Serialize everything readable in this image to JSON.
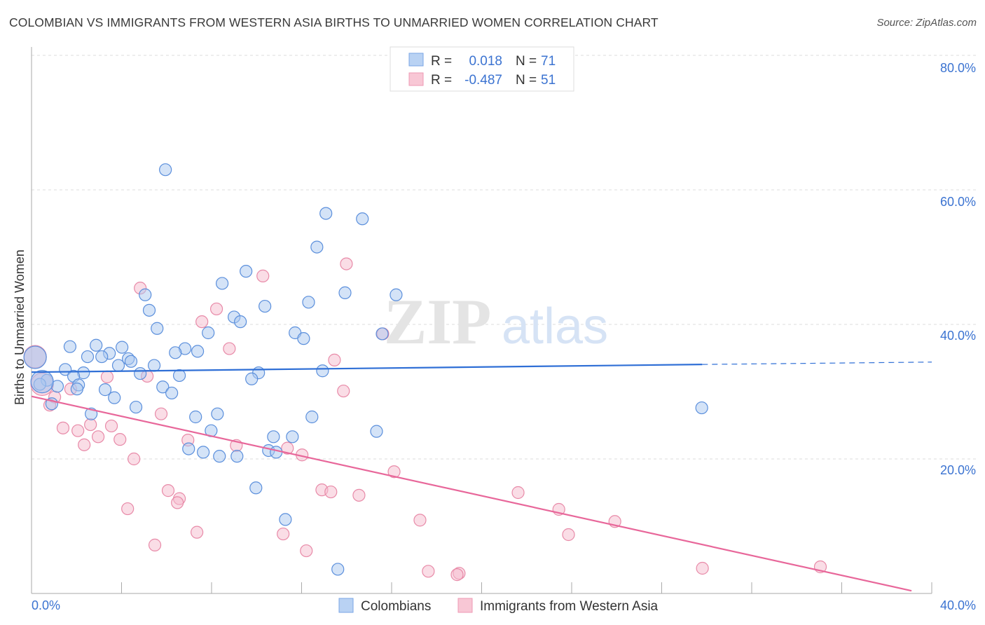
{
  "title": "COLOMBIAN VS IMMIGRANTS FROM WESTERN ASIA BIRTHS TO UNMARRIED WOMEN CORRELATION CHART",
  "source": "Source: ZipAtlas.com",
  "watermark": "ZIPatlas",
  "colors": {
    "blue_fill": "#a9c7f0",
    "blue_stroke": "#5b8fdc",
    "blue_line": "#2f6fd6",
    "pink_fill": "#f6bccd",
    "pink_stroke": "#e88aa8",
    "pink_line": "#e8679a",
    "accent_text": "#3b73d1"
  },
  "legend": {
    "rows": [
      {
        "r_label": "R =",
        "r_value": "0.018",
        "n_label": "N =",
        "n_value": "71"
      },
      {
        "r_label": "R =",
        "r_value": "-0.487",
        "n_label": "N =",
        "n_value": "51"
      }
    ]
  },
  "chart_data": {
    "type": "scatter",
    "title": "COLOMBIAN VS IMMIGRANTS FROM WESTERN ASIA BIRTHS TO UNMARRIED WOMEN CORRELATION CHART",
    "xlabel": "",
    "ylabel": "Births to Unmarried Women",
    "xlim": [
      0,
      40
    ],
    "ylim": [
      0,
      80
    ],
    "x_tick_labels": [
      "0.0%",
      "40.0%"
    ],
    "y_ticks": [
      20,
      40,
      60,
      80
    ],
    "y_tick_labels": [
      "20.0%",
      "40.0%",
      "60.0%",
      "80.0%"
    ],
    "grid": true,
    "legend_position": "top-center",
    "series": [
      {
        "name": "Colombians",
        "trend": {
          "x": [
            0,
            29.8,
            40
          ],
          "y": [
            32.9,
            34.05,
            34.4
          ],
          "dashed_from": 29.8
        },
        "points": [
          [
            5.95,
            63.0
          ],
          [
            13.08,
            56.5
          ],
          [
            14.7,
            55.7
          ],
          [
            12.68,
            51.5
          ],
          [
            9.53,
            47.9
          ],
          [
            8.47,
            46.1
          ],
          [
            13.93,
            44.7
          ],
          [
            16.2,
            44.4
          ],
          [
            5.05,
            44.4
          ],
          [
            12.31,
            43.3
          ],
          [
            10.37,
            42.7
          ],
          [
            5.23,
            42.1
          ],
          [
            9.0,
            41.1
          ],
          [
            9.28,
            40.4
          ],
          [
            5.58,
            39.4
          ],
          [
            11.71,
            38.75
          ],
          [
            7.85,
            38.75
          ],
          [
            15.58,
            38.6
          ],
          [
            12.09,
            37.9
          ],
          [
            1.71,
            36.7
          ],
          [
            2.87,
            36.9
          ],
          [
            4.02,
            36.6
          ],
          [
            6.82,
            36.4
          ],
          [
            7.38,
            36.0
          ],
          [
            6.39,
            35.8
          ],
          [
            3.46,
            35.7
          ],
          [
            2.49,
            35.2
          ],
          [
            3.12,
            35.2
          ],
          [
            4.3,
            34.9
          ],
          [
            4.42,
            34.5
          ],
          [
            5.45,
            33.9
          ],
          [
            3.86,
            33.9
          ],
          [
            1.5,
            33.3
          ],
          [
            2.31,
            32.8
          ],
          [
            4.83,
            32.7
          ],
          [
            12.93,
            33.1
          ],
          [
            10.09,
            32.8
          ],
          [
            1.87,
            32.3
          ],
          [
            6.57,
            32.4
          ],
          [
            9.78,
            31.9
          ],
          [
            0.69,
            31.7
          ],
          [
            0.37,
            31.1
          ],
          [
            1.15,
            30.8
          ],
          [
            2.09,
            31.0
          ],
          [
            2.02,
            30.4
          ],
          [
            3.27,
            30.3
          ],
          [
            5.83,
            30.7
          ],
          [
            6.23,
            29.8
          ],
          [
            3.68,
            29.1
          ],
          [
            0.9,
            28.2
          ],
          [
            4.64,
            27.7
          ],
          [
            29.78,
            27.6
          ],
          [
            7.29,
            26.25
          ],
          [
            8.26,
            26.7
          ],
          [
            12.46,
            26.25
          ],
          [
            2.65,
            26.7
          ],
          [
            7.98,
            24.2
          ],
          [
            15.33,
            24.1
          ],
          [
            10.75,
            23.3
          ],
          [
            11.59,
            23.3
          ],
          [
            6.98,
            21.5
          ],
          [
            7.63,
            21.0
          ],
          [
            8.35,
            20.4
          ],
          [
            9.13,
            20.4
          ],
          [
            10.53,
            21.25
          ],
          [
            10.87,
            21.0
          ],
          [
            9.97,
            15.7
          ],
          [
            11.28,
            11.0
          ],
          [
            13.61,
            3.6
          ],
          [
            0.16,
            35.1,
            "large"
          ],
          [
            0.47,
            31.5,
            "large"
          ]
        ]
      },
      {
        "name": "Immigrants from Western Asia",
        "trend": {
          "x": [
            0,
            39.1
          ],
          "y": [
            29.3,
            0.4
          ]
        },
        "points": [
          [
            4.83,
            45.4
          ],
          [
            13.99,
            49.0
          ],
          [
            10.28,
            47.2
          ],
          [
            8.22,
            42.3
          ],
          [
            7.57,
            40.4
          ],
          [
            8.79,
            36.4
          ],
          [
            15.61,
            38.6
          ],
          [
            13.46,
            34.7
          ],
          [
            3.36,
            32.2
          ],
          [
            5.14,
            32.3
          ],
          [
            13.86,
            30.1
          ],
          [
            1.74,
            30.4
          ],
          [
            1.03,
            29.2
          ],
          [
            0.81,
            28.0
          ],
          [
            5.76,
            26.7
          ],
          [
            2.62,
            25.1
          ],
          [
            1.4,
            24.6
          ],
          [
            3.55,
            24.9
          ],
          [
            2.06,
            24.2
          ],
          [
            2.96,
            23.3
          ],
          [
            3.93,
            22.9
          ],
          [
            2.34,
            22.1
          ],
          [
            6.95,
            22.8
          ],
          [
            9.1,
            22.0
          ],
          [
            11.37,
            21.6
          ],
          [
            12.02,
            20.6
          ],
          [
            16.11,
            18.1
          ],
          [
            4.55,
            20.0
          ],
          [
            6.07,
            15.3
          ],
          [
            12.9,
            15.4
          ],
          [
            13.3,
            15.1
          ],
          [
            14.55,
            14.6
          ],
          [
            6.57,
            14.1
          ],
          [
            6.48,
            13.5
          ],
          [
            4.27,
            12.6
          ],
          [
            21.62,
            15.0
          ],
          [
            23.43,
            12.5
          ],
          [
            25.92,
            10.7
          ],
          [
            17.26,
            10.9
          ],
          [
            23.86,
            8.75
          ],
          [
            7.35,
            9.1
          ],
          [
            11.18,
            8.85
          ],
          [
            5.48,
            7.2
          ],
          [
            12.21,
            6.35
          ],
          [
            17.63,
            3.3
          ],
          [
            19.0,
            3.0
          ],
          [
            18.91,
            2.8
          ],
          [
            29.81,
            3.75
          ],
          [
            35.05,
            3.96
          ],
          [
            0.16,
            35.2,
            "large"
          ],
          [
            0.47,
            31.1,
            "large"
          ]
        ]
      }
    ]
  }
}
